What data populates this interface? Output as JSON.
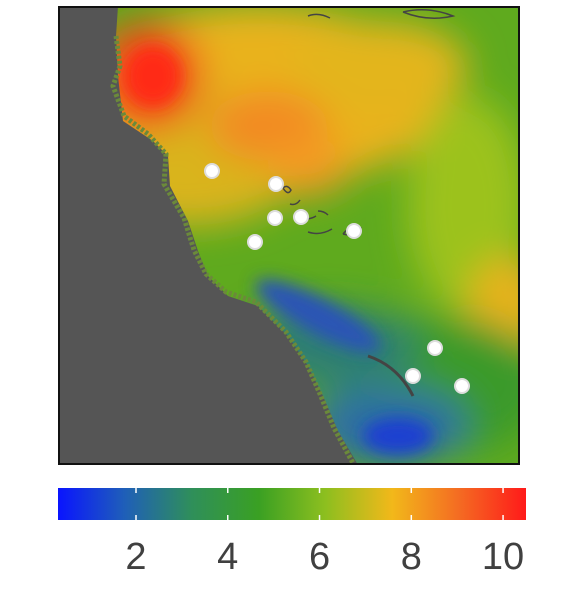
{
  "map": {
    "description_colors": {
      "land_masked": "#555555",
      "frame": "#111111"
    },
    "sample_points_count": 9
  },
  "colorbar": {
    "min": 0.3,
    "max": 10.5,
    "stops": [
      "#0a14ff",
      "#1f5fb8",
      "#2f8f5a",
      "#3aa023",
      "#8dbf1f",
      "#f2b81a",
      "#f46b22",
      "#ff1a1a"
    ],
    "ticks": [
      {
        "value": 2,
        "label": "2"
      },
      {
        "value": 4,
        "label": "4"
      },
      {
        "value": 6,
        "label": "6"
      },
      {
        "value": 8,
        "label": "8"
      },
      {
        "value": 10,
        "label": "10"
      }
    ]
  }
}
